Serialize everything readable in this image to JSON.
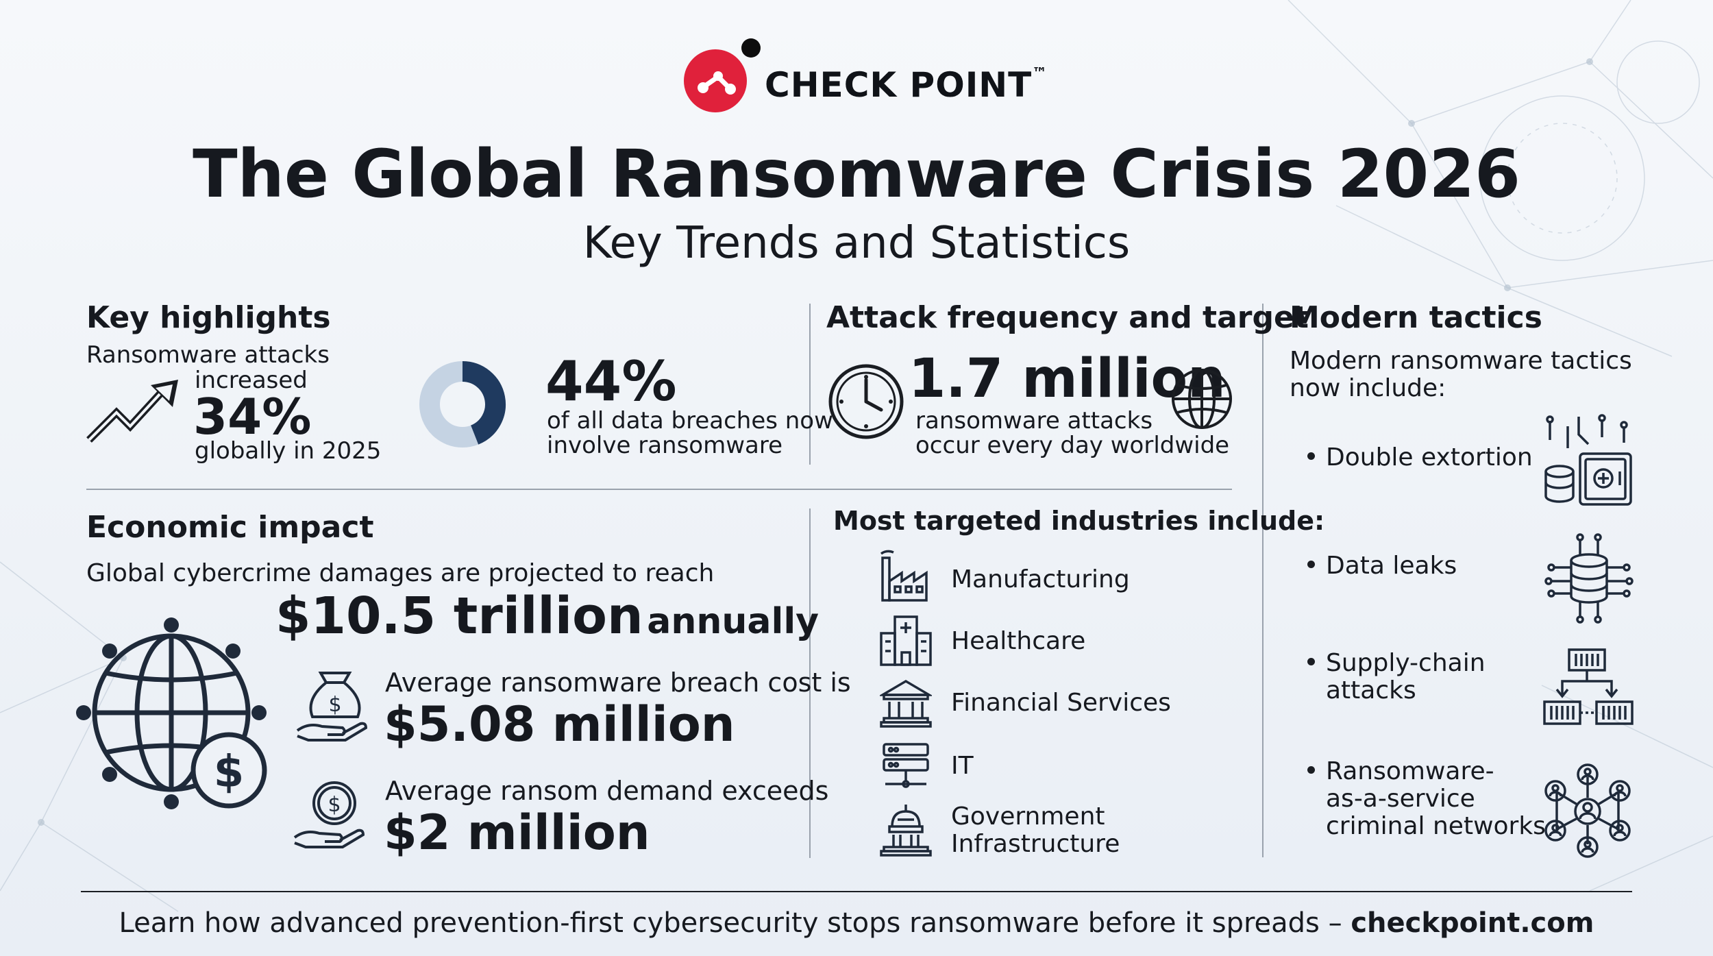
{
  "header": {
    "brand": "CHECK POINT",
    "trademark": "™",
    "title": "The Global Ransomware Crisis 2026",
    "subtitle": "Key Trends and Statistics"
  },
  "highlights": {
    "heading": "Key highlights",
    "attacks_line1": "Ransomware attacks",
    "attacks_line2": "increased",
    "attacks_value": "34%",
    "attacks_line3": "globally in 2025",
    "breaches_value": "44%",
    "breaches_line1": "of all data breaches now",
    "breaches_line2": "involve ransomware",
    "breaches_fraction": 0.44
  },
  "frequency": {
    "heading": "Attack frequency and target",
    "value": "1.7 million",
    "line1": "ransomware attacks",
    "line2": "occur every day worldwide"
  },
  "tactics": {
    "heading": "Modern tactics",
    "intro1": "Modern ransomware tactics",
    "intro2": "now include:",
    "items": [
      {
        "line1": "Double extortion",
        "line2": "",
        "line3": "",
        "icon": "database-safe-icon"
      },
      {
        "line1": "Data leaks",
        "line2": "",
        "line3": "",
        "icon": "database-network-icon"
      },
      {
        "line1": "Supply-chain",
        "line2": "attacks",
        "line3": "",
        "icon": "supply-chain-icon"
      },
      {
        "line1": "Ransomware-",
        "line2": "as-a-service",
        "line3": "criminal networks",
        "icon": "people-network-icon"
      }
    ]
  },
  "economic": {
    "heading": "Economic impact",
    "intro": "Global cybercrime damages are projected to reach",
    "damages_value": "$10.5 trillion",
    "damages_suffix": "annually",
    "breach_label": "Average ransomware breach cost is",
    "breach_value": "$5.08 million",
    "ransom_label": "Average ransom demand exceeds",
    "ransom_value": "$2 million"
  },
  "industries": {
    "heading": "Most targeted industries include:",
    "items": [
      {
        "line1": "Manufacturing",
        "line2": "",
        "icon": "factory-icon"
      },
      {
        "line1": "Healthcare",
        "line2": "",
        "icon": "hospital-icon"
      },
      {
        "line1": "Financial Services",
        "line2": "",
        "icon": "bank-icon"
      },
      {
        "line1": "IT",
        "line2": "",
        "icon": "server-icon"
      },
      {
        "line1": "Government",
        "line2": "Infrastructure",
        "icon": "capitol-icon"
      }
    ]
  },
  "footer": {
    "text": "Learn how advanced prevention-first cybersecurity stops ransomware before it spreads – ",
    "link": "checkpoint.com"
  },
  "colors": {
    "brand_red": "#e0213b",
    "donut_dark": "#1f3a5f",
    "donut_light": "#c5d3e3",
    "icon_stroke": "#1f2a3a"
  }
}
